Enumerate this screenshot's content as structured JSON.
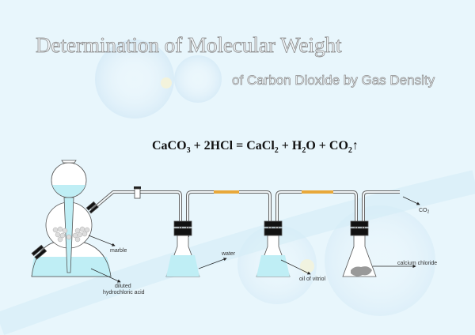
{
  "title": "Determination of Molecular Weight",
  "subtitle": "of Carbon Dioxide by Gas Density",
  "equation": {
    "lhs": "CaCO",
    "lhs_sub": "3",
    "mid1": " + 2HCl = CaCl",
    "mid1_sub": "2",
    "mid2": " + H",
    "mid2_sub": "2",
    "mid3": "O + CO",
    "mid3_sub": "2",
    "arrow": "↑"
  },
  "labels": {
    "marble": "marble",
    "acid_line1": "diluted",
    "acid_line2": "hydrochloric acid",
    "water": "water",
    "vitriol": "oil of vitriol",
    "calcium": "calcium chloride",
    "co2": "CO",
    "co2_sub": "2"
  },
  "colors": {
    "liquid": "#bfeef5",
    "glass": "#555555",
    "rubber": "#e8a83a",
    "background": "#e8f6fc"
  }
}
